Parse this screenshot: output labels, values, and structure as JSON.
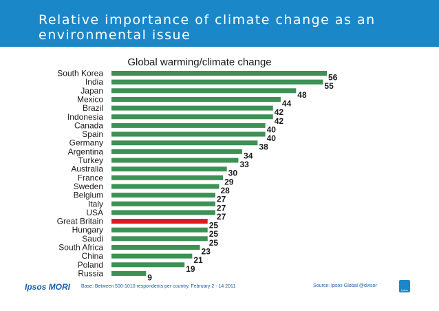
{
  "header": {
    "title": "Relative importance of climate change as an environmental issue"
  },
  "footer": {
    "logo": "Ipsos MORI",
    "footnote": "Base: Between 500-1010 respondents per country, February 2 - 14 2011",
    "source": "Source: Ipsos Global @dvisor",
    "badge": "Ipsos"
  },
  "colors": {
    "header_bg": "#1a87c9",
    "bar": "#3c9154",
    "highlight_bar": "#e0181e",
    "label_text": "#1a1a1a"
  },
  "chart_data": {
    "type": "bar",
    "orientation": "horizontal",
    "title": "Global warming/climate change",
    "xlabel": "",
    "ylabel": "",
    "xlim": [
      0,
      56
    ],
    "grid": false,
    "highlight": "Great Britain",
    "categories": [
      "South Korea",
      "India",
      "Japan",
      "Mexico",
      "Brazil",
      "Indonesia",
      "Canada",
      "Spain",
      "Germany",
      "Argentina",
      "Turkey",
      "Australia",
      "France",
      "Sweden",
      "Belgium",
      "Italy",
      "USA",
      "Great Britain",
      "Hungary",
      "Saudi",
      "South Africa",
      "China",
      "Poland",
      "Russia"
    ],
    "values": [
      56,
      55,
      48,
      44,
      42,
      42,
      40,
      40,
      38,
      34,
      33,
      30,
      29,
      28,
      27,
      27,
      27,
      25,
      25,
      25,
      23,
      21,
      19,
      9
    ]
  }
}
